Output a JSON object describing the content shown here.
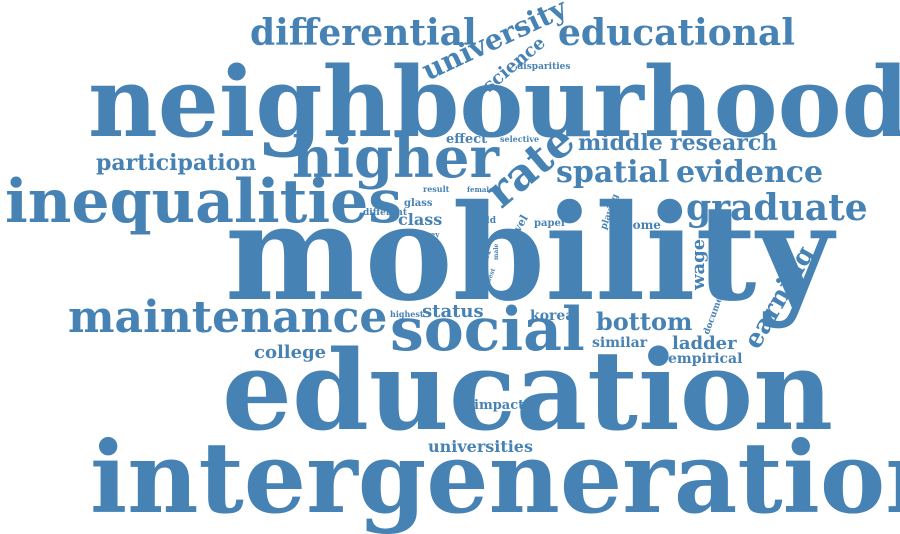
{
  "accent_color": "#4682B4",
  "words": [
    {
      "text": "intergenerational",
      "rot": 0
    },
    {
      "text": "education",
      "rot": 0
    },
    {
      "text": "mobility",
      "rot": 0
    },
    {
      "text": "neighbourhood",
      "rot": 0
    },
    {
      "text": "inequalities",
      "rot": 0
    },
    {
      "text": "higher",
      "rot": 0
    },
    {
      "text": "social",
      "rot": 0
    },
    {
      "text": "maintenance",
      "rot": 0
    },
    {
      "text": "differential",
      "rot": 0
    },
    {
      "text": "educational",
      "rot": 0
    },
    {
      "text": "graduate",
      "rot": 0
    },
    {
      "text": "spatial",
      "rot": 0
    },
    {
      "text": "evidence",
      "rot": 0
    },
    {
      "text": "rate",
      "rot": -40
    },
    {
      "text": "university",
      "rot": -25
    },
    {
      "text": "science",
      "rot": -40
    },
    {
      "text": "middle",
      "rot": 0
    },
    {
      "text": "research",
      "rot": 0
    },
    {
      "text": "participation",
      "rot": 0
    },
    {
      "text": "earning",
      "rot": -60
    },
    {
      "text": "bottom",
      "rot": 0
    },
    {
      "text": "status",
      "rot": 0
    },
    {
      "text": "college",
      "rot": 0
    },
    {
      "text": "ladder",
      "rot": 0
    },
    {
      "text": "universities",
      "rot": 0
    },
    {
      "text": "empirical",
      "rot": 0
    },
    {
      "text": "similar",
      "rot": 0
    },
    {
      "text": "wage",
      "rot": -90
    },
    {
      "text": "korea",
      "rot": 0
    },
    {
      "text": "class",
      "rot": 0
    },
    {
      "text": "impact",
      "rot": 0
    },
    {
      "text": "effect",
      "rot": 0
    },
    {
      "text": "income",
      "rot": 0
    },
    {
      "text": "disparities",
      "rot": 0
    },
    {
      "text": "selective",
      "rot": 0
    },
    {
      "text": "result",
      "rot": 0
    },
    {
      "text": "female",
      "rot": 0
    },
    {
      "text": "glass",
      "rot": 0
    },
    {
      "text": "different",
      "rot": 0
    },
    {
      "text": "survey",
      "rot": 0
    },
    {
      "text": "field",
      "rot": 0
    },
    {
      "text": "level",
      "rot": -60
    },
    {
      "text": "paper",
      "rot": 0
    },
    {
      "text": "playing",
      "rot": -70
    },
    {
      "text": "role",
      "rot": 0
    },
    {
      "text": "floor",
      "rot": -70
    },
    {
      "text": "lowest",
      "rot": -70
    },
    {
      "text": "male",
      "rot": -90
    },
    {
      "text": "measure",
      "rot": -80
    },
    {
      "text": "various",
      "rot": -60
    },
    {
      "text": "document",
      "rot": -70
    },
    {
      "text": "highest",
      "rot": 0
    }
  ]
}
